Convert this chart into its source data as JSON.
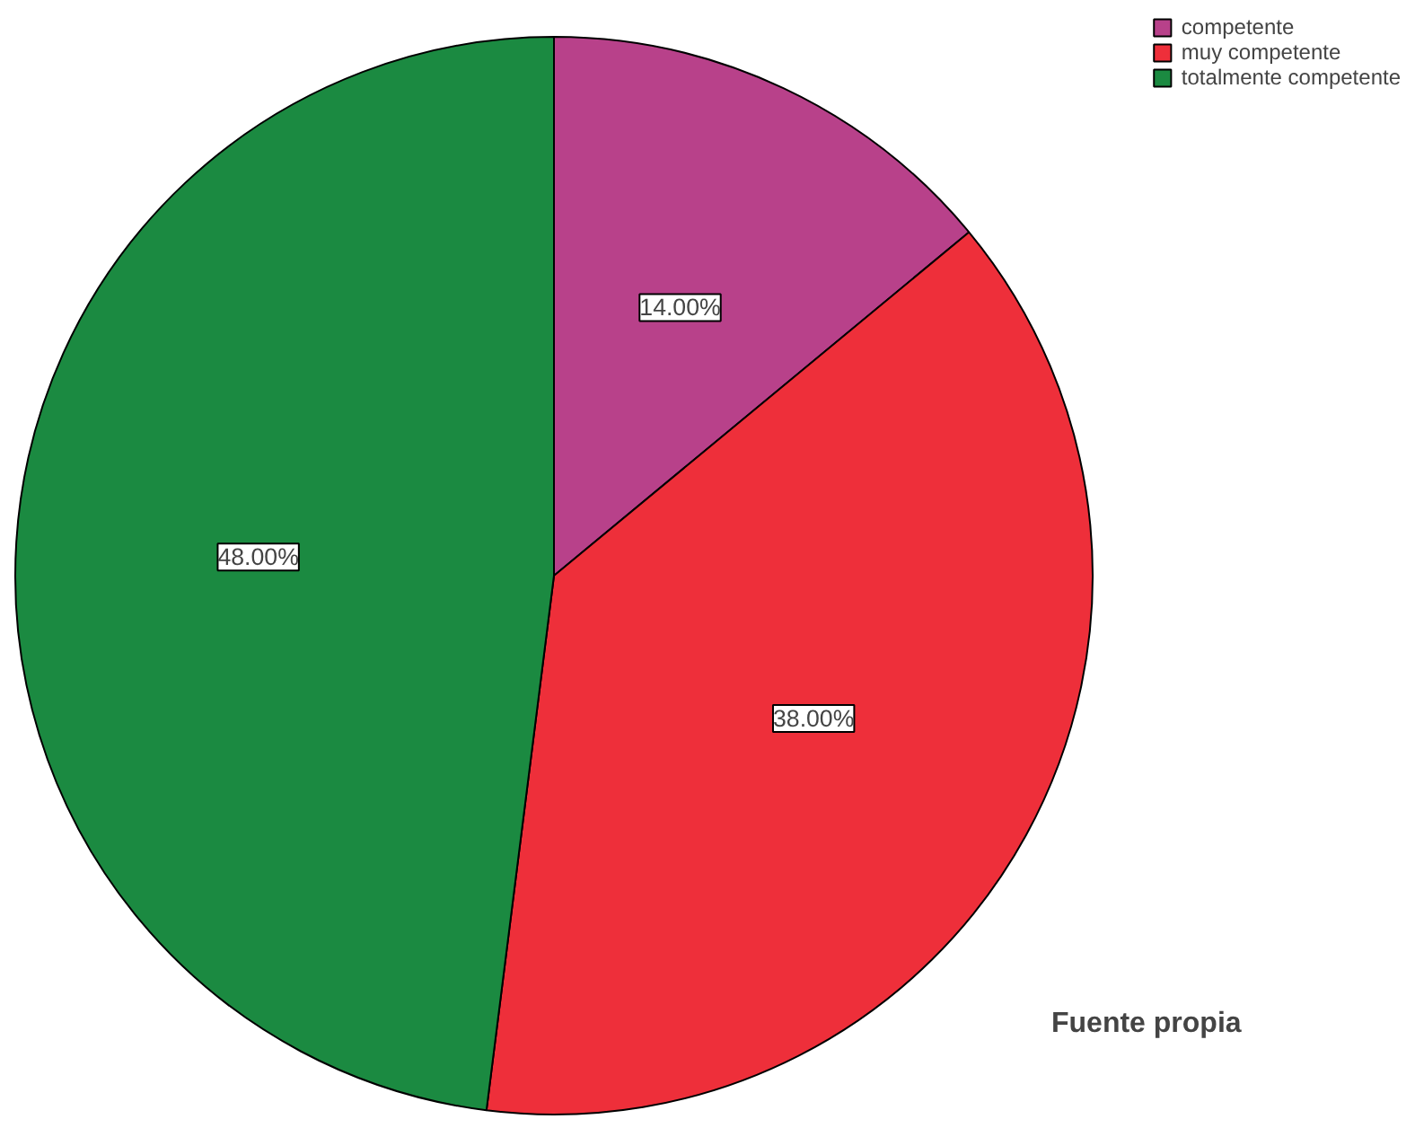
{
  "chart_data": {
    "type": "pie",
    "categories": [
      "competente",
      "muy competente",
      "totalmente competente"
    ],
    "values": [
      14,
      38,
      48
    ],
    "colors": [
      "#b8418a",
      "#ee2f3a",
      "#1b8a41"
    ],
    "value_labels": [
      "14.00%",
      "38.00%",
      "48.00%"
    ],
    "legend": "top right",
    "annotations": [
      "Fuente propia"
    ]
  }
}
